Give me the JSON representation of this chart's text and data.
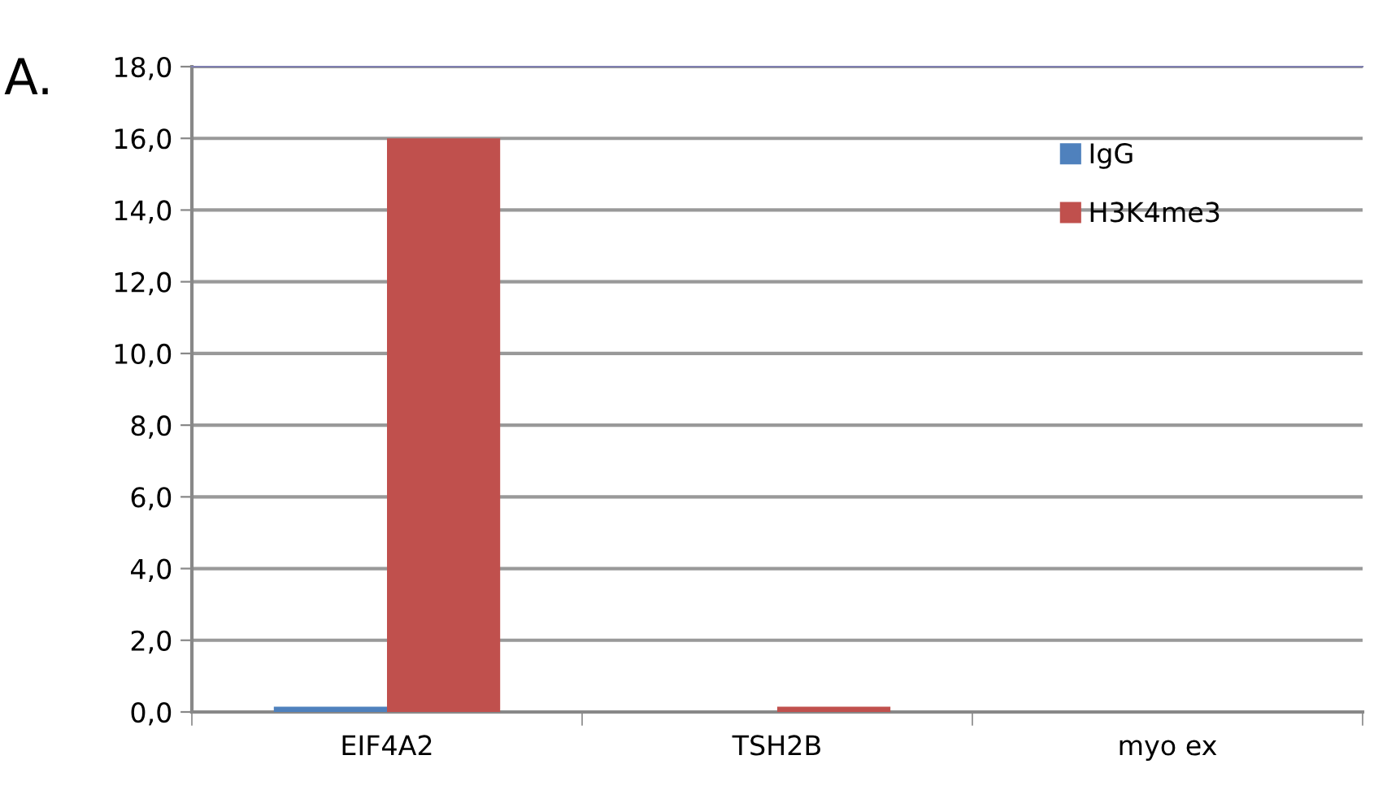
{
  "chart_data": {
    "type": "bar",
    "title": "A.",
    "categories": [
      "EIF4A2",
      "TSH2B",
      "myo ex"
    ],
    "series": [
      {
        "name": "IgG",
        "color": "#4f81bd",
        "values": [
          0.15,
          null,
          null
        ]
      },
      {
        "name": "H3K4me3",
        "color": "#c0504d",
        "values": [
          16.0,
          0.15,
          null
        ]
      }
    ],
    "ylim": [
      0,
      18
    ],
    "yticks": [
      {
        "value": 0,
        "label": "0,0"
      },
      {
        "value": 2,
        "label": "2,0"
      },
      {
        "value": 4,
        "label": "4,0"
      },
      {
        "value": 6,
        "label": "6,0"
      },
      {
        "value": 8,
        "label": "8,0"
      },
      {
        "value": 10,
        "label": "10,0"
      },
      {
        "value": 12,
        "label": "12,0"
      },
      {
        "value": 14,
        "label": "14,0"
      },
      {
        "value": 16,
        "label": "16,0"
      },
      {
        "value": 18,
        "label": "18,0"
      }
    ],
    "grid": "y",
    "legend": "top right"
  }
}
